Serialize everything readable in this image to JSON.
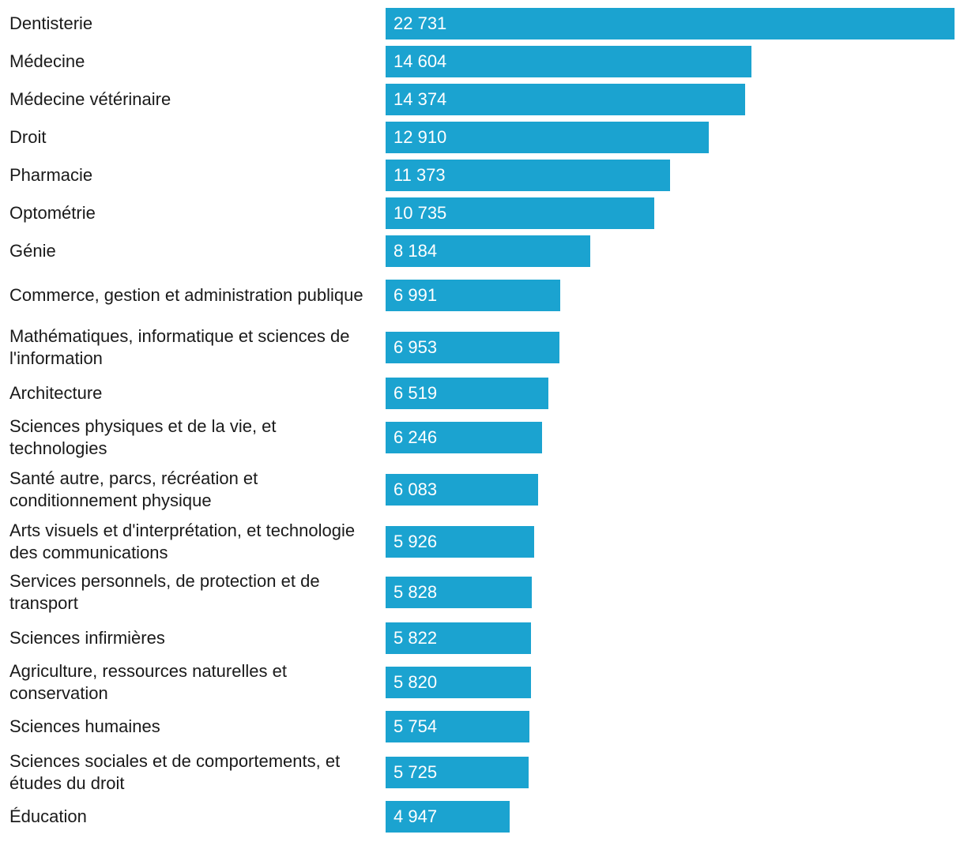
{
  "chart_data": {
    "type": "bar",
    "orientation": "horizontal",
    "bar_color": "#1ba3d0",
    "value_label_color": "#ffffff",
    "categories": [
      "Dentisterie",
      "Médecine",
      "Médecine vétérinaire",
      "Droit",
      "Pharmacie",
      "Optométrie",
      "Génie",
      "Commerce, gestion et administration publique",
      "Mathématiques, informatique et sciences de l'information",
      "Architecture",
      "Sciences physiques et de la vie, et technologies",
      "Santé autre, parcs, récréation et conditionnement physique",
      "Arts visuels et d'interprétation, et technologie des communications",
      "Services personnels, de protection et de transport",
      "Sciences infirmières",
      "Agriculture, ressources naturelles et conservation",
      "Sciences humaines",
      "Sciences sociales et de comportements, et études du droit",
      "Éducation"
    ],
    "values": [
      22731,
      14604,
      14374,
      12910,
      11373,
      10735,
      8184,
      6991,
      6953,
      6519,
      6246,
      6083,
      5926,
      5828,
      5822,
      5820,
      5754,
      5725,
      4947
    ],
    "value_labels": [
      "22 731",
      "14 604",
      "14 374",
      "12 910",
      "11 373",
      "10 735",
      "8 184",
      "6 991",
      "6 953",
      "6 519",
      "6 246",
      "6 083",
      "5 926",
      "5 828",
      "5 822",
      "5 820",
      "5 754",
      "5 725",
      "4 947"
    ],
    "xlim": [
      0,
      22731
    ],
    "grid": false,
    "legend": "none"
  }
}
